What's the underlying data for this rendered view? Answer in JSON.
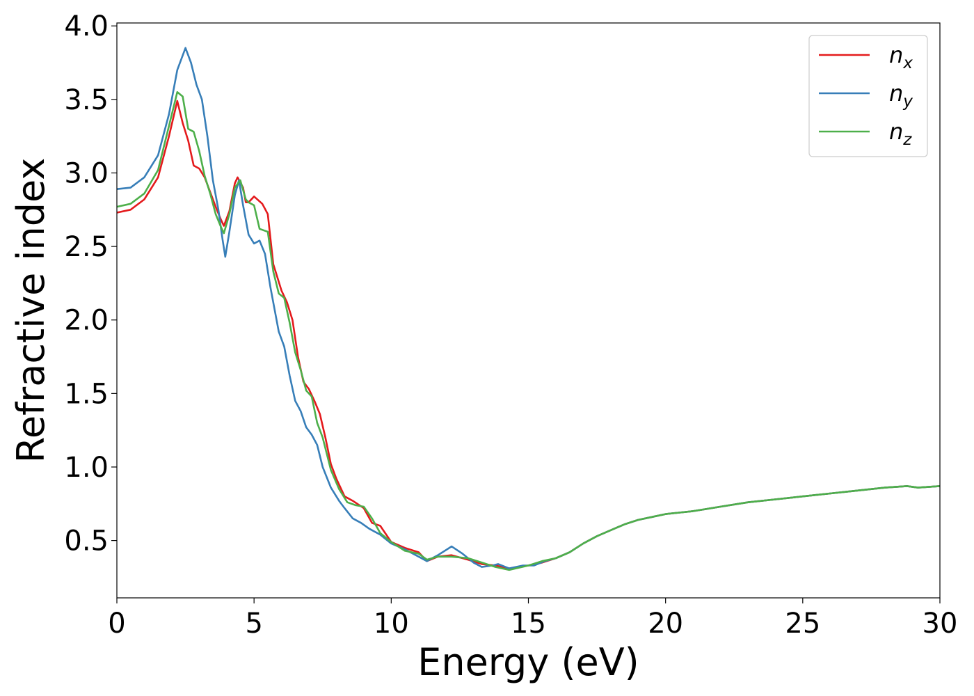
{
  "chart_data": {
    "type": "line",
    "xlabel": "Energy (eV)",
    "ylabel": "Refractive index",
    "xlim": [
      0,
      30
    ],
    "ylim": [
      0.11,
      4.02
    ],
    "xticks": [
      "0",
      "5",
      "10",
      "15",
      "20",
      "25",
      "30"
    ],
    "yticks": [
      "0.5",
      "1.0",
      "1.5",
      "2.0",
      "2.5",
      "3.0",
      "3.5",
      "4.0"
    ],
    "grid": false,
    "legend_position": "top-right",
    "series": [
      {
        "name": "n",
        "subscript": "x",
        "color": "#e41a1c",
        "points": [
          [
            0,
            2.73
          ],
          [
            0.5,
            2.75
          ],
          [
            1.0,
            2.82
          ],
          [
            1.5,
            2.97
          ],
          [
            1.9,
            3.25
          ],
          [
            2.2,
            3.49
          ],
          [
            2.4,
            3.34
          ],
          [
            2.6,
            3.22
          ],
          [
            2.8,
            3.05
          ],
          [
            3.0,
            3.03
          ],
          [
            3.2,
            2.97
          ],
          [
            3.4,
            2.87
          ],
          [
            3.6,
            2.77
          ],
          [
            3.8,
            2.68
          ],
          [
            3.9,
            2.64
          ],
          [
            4.1,
            2.74
          ],
          [
            4.3,
            2.93
          ],
          [
            4.4,
            2.97
          ],
          [
            4.6,
            2.9
          ],
          [
            4.7,
            2.8
          ],
          [
            4.8,
            2.8
          ],
          [
            5.0,
            2.84
          ],
          [
            5.3,
            2.79
          ],
          [
            5.5,
            2.72
          ],
          [
            5.7,
            2.38
          ],
          [
            6.0,
            2.2
          ],
          [
            6.2,
            2.12
          ],
          [
            6.4,
            2.0
          ],
          [
            6.6,
            1.75
          ],
          [
            6.8,
            1.58
          ],
          [
            7.0,
            1.53
          ],
          [
            7.2,
            1.45
          ],
          [
            7.4,
            1.36
          ],
          [
            7.6,
            1.2
          ],
          [
            7.8,
            1.02
          ],
          [
            8.0,
            0.92
          ],
          [
            8.3,
            0.8
          ],
          [
            8.6,
            0.77
          ],
          [
            9.0,
            0.72
          ],
          [
            9.3,
            0.62
          ],
          [
            9.6,
            0.6
          ],
          [
            10.0,
            0.49
          ],
          [
            10.5,
            0.45
          ],
          [
            11.0,
            0.42
          ],
          [
            11.3,
            0.36
          ],
          [
            11.7,
            0.39
          ],
          [
            12.2,
            0.4
          ],
          [
            12.8,
            0.37
          ],
          [
            13.3,
            0.34
          ],
          [
            13.8,
            0.33
          ],
          [
            14.3,
            0.31
          ],
          [
            15.0,
            0.33
          ],
          [
            15.5,
            0.35
          ],
          [
            16.0,
            0.38
          ],
          [
            16.5,
            0.42
          ],
          [
            17.0,
            0.48
          ],
          [
            17.5,
            0.53
          ],
          [
            18.0,
            0.57
          ],
          [
            18.5,
            0.61
          ],
          [
            19.0,
            0.64
          ],
          [
            19.5,
            0.66
          ],
          [
            20.0,
            0.68
          ],
          [
            20.5,
            0.69
          ],
          [
            21.0,
            0.7
          ],
          [
            22.0,
            0.73
          ],
          [
            23.0,
            0.76
          ],
          [
            24.0,
            0.78
          ],
          [
            25.0,
            0.8
          ],
          [
            26.0,
            0.82
          ],
          [
            27.0,
            0.84
          ],
          [
            28.0,
            0.86
          ],
          [
            28.8,
            0.87
          ],
          [
            29.2,
            0.86
          ],
          [
            30.0,
            0.87
          ]
        ]
      },
      {
        "name": "n",
        "subscript": "y",
        "color": "#377eb8",
        "points": [
          [
            0,
            2.89
          ],
          [
            0.5,
            2.9
          ],
          [
            1.0,
            2.97
          ],
          [
            1.5,
            3.12
          ],
          [
            1.9,
            3.4
          ],
          [
            2.2,
            3.7
          ],
          [
            2.5,
            3.85
          ],
          [
            2.7,
            3.75
          ],
          [
            2.9,
            3.6
          ],
          [
            3.1,
            3.5
          ],
          [
            3.3,
            3.25
          ],
          [
            3.5,
            2.95
          ],
          [
            3.7,
            2.75
          ],
          [
            3.85,
            2.55
          ],
          [
            3.95,
            2.43
          ],
          [
            4.1,
            2.6
          ],
          [
            4.3,
            2.85
          ],
          [
            4.45,
            2.95
          ],
          [
            4.6,
            2.78
          ],
          [
            4.8,
            2.58
          ],
          [
            5.0,
            2.52
          ],
          [
            5.2,
            2.54
          ],
          [
            5.4,
            2.45
          ],
          [
            5.6,
            2.22
          ],
          [
            5.9,
            1.92
          ],
          [
            6.1,
            1.82
          ],
          [
            6.3,
            1.62
          ],
          [
            6.5,
            1.45
          ],
          [
            6.7,
            1.38
          ],
          [
            6.9,
            1.27
          ],
          [
            7.1,
            1.22
          ],
          [
            7.3,
            1.15
          ],
          [
            7.5,
            1.0
          ],
          [
            7.8,
            0.86
          ],
          [
            8.1,
            0.77
          ],
          [
            8.3,
            0.72
          ],
          [
            8.6,
            0.65
          ],
          [
            8.9,
            0.62
          ],
          [
            9.2,
            0.58
          ],
          [
            9.6,
            0.54
          ],
          [
            10.0,
            0.48
          ],
          [
            10.5,
            0.44
          ],
          [
            11.0,
            0.39
          ],
          [
            11.3,
            0.36
          ],
          [
            11.7,
            0.4
          ],
          [
            12.2,
            0.46
          ],
          [
            12.6,
            0.41
          ],
          [
            13.0,
            0.35
          ],
          [
            13.3,
            0.32
          ],
          [
            13.7,
            0.33
          ],
          [
            13.9,
            0.34
          ],
          [
            14.3,
            0.31
          ],
          [
            14.8,
            0.33
          ],
          [
            15.2,
            0.33
          ],
          [
            15.6,
            0.36
          ],
          [
            16.0,
            0.38
          ],
          [
            16.5,
            0.42
          ],
          [
            17.0,
            0.48
          ],
          [
            17.5,
            0.53
          ],
          [
            18.0,
            0.57
          ],
          [
            18.5,
            0.61
          ],
          [
            19.0,
            0.64
          ],
          [
            19.5,
            0.66
          ],
          [
            20.0,
            0.68
          ],
          [
            20.5,
            0.69
          ],
          [
            21.0,
            0.7
          ],
          [
            22.0,
            0.73
          ],
          [
            23.0,
            0.76
          ],
          [
            24.0,
            0.78
          ],
          [
            25.0,
            0.8
          ],
          [
            26.0,
            0.82
          ],
          [
            27.0,
            0.84
          ],
          [
            28.0,
            0.86
          ],
          [
            28.8,
            0.87
          ],
          [
            29.2,
            0.86
          ],
          [
            30.0,
            0.87
          ]
        ]
      },
      {
        "name": "n",
        "subscript": "z",
        "color": "#4daf4a",
        "points": [
          [
            0,
            2.77
          ],
          [
            0.5,
            2.79
          ],
          [
            1.0,
            2.86
          ],
          [
            1.5,
            3.02
          ],
          [
            1.9,
            3.32
          ],
          [
            2.2,
            3.55
          ],
          [
            2.4,
            3.52
          ],
          [
            2.6,
            3.3
          ],
          [
            2.8,
            3.28
          ],
          [
            3.0,
            3.15
          ],
          [
            3.2,
            2.98
          ],
          [
            3.4,
            2.86
          ],
          [
            3.6,
            2.72
          ],
          [
            3.8,
            2.63
          ],
          [
            3.9,
            2.59
          ],
          [
            4.1,
            2.72
          ],
          [
            4.3,
            2.9
          ],
          [
            4.5,
            2.95
          ],
          [
            4.7,
            2.82
          ],
          [
            4.8,
            2.8
          ],
          [
            5.0,
            2.78
          ],
          [
            5.2,
            2.62
          ],
          [
            5.5,
            2.6
          ],
          [
            5.7,
            2.33
          ],
          [
            5.9,
            2.18
          ],
          [
            6.1,
            2.15
          ],
          [
            6.3,
            1.98
          ],
          [
            6.5,
            1.78
          ],
          [
            6.7,
            1.66
          ],
          [
            6.9,
            1.52
          ],
          [
            7.1,
            1.48
          ],
          [
            7.3,
            1.3
          ],
          [
            7.5,
            1.2
          ],
          [
            7.8,
            0.98
          ],
          [
            8.1,
            0.85
          ],
          [
            8.4,
            0.76
          ],
          [
            8.7,
            0.74
          ],
          [
            9.0,
            0.73
          ],
          [
            9.3,
            0.65
          ],
          [
            9.6,
            0.55
          ],
          [
            10.0,
            0.49
          ],
          [
            10.5,
            0.43
          ],
          [
            11.0,
            0.41
          ],
          [
            11.3,
            0.37
          ],
          [
            11.7,
            0.39
          ],
          [
            12.2,
            0.39
          ],
          [
            12.8,
            0.38
          ],
          [
            13.3,
            0.35
          ],
          [
            13.8,
            0.32
          ],
          [
            14.3,
            0.3
          ],
          [
            15.0,
            0.33
          ],
          [
            15.5,
            0.36
          ],
          [
            16.0,
            0.38
          ],
          [
            16.5,
            0.42
          ],
          [
            17.0,
            0.48
          ],
          [
            17.5,
            0.53
          ],
          [
            18.0,
            0.57
          ],
          [
            18.5,
            0.61
          ],
          [
            19.0,
            0.64
          ],
          [
            19.5,
            0.66
          ],
          [
            20.0,
            0.68
          ],
          [
            20.5,
            0.69
          ],
          [
            21.0,
            0.7
          ],
          [
            22.0,
            0.73
          ],
          [
            23.0,
            0.76
          ],
          [
            24.0,
            0.78
          ],
          [
            25.0,
            0.8
          ],
          [
            26.0,
            0.82
          ],
          [
            27.0,
            0.84
          ],
          [
            28.0,
            0.86
          ],
          [
            28.8,
            0.87
          ],
          [
            29.2,
            0.86
          ],
          [
            30.0,
            0.87
          ]
        ]
      }
    ]
  }
}
